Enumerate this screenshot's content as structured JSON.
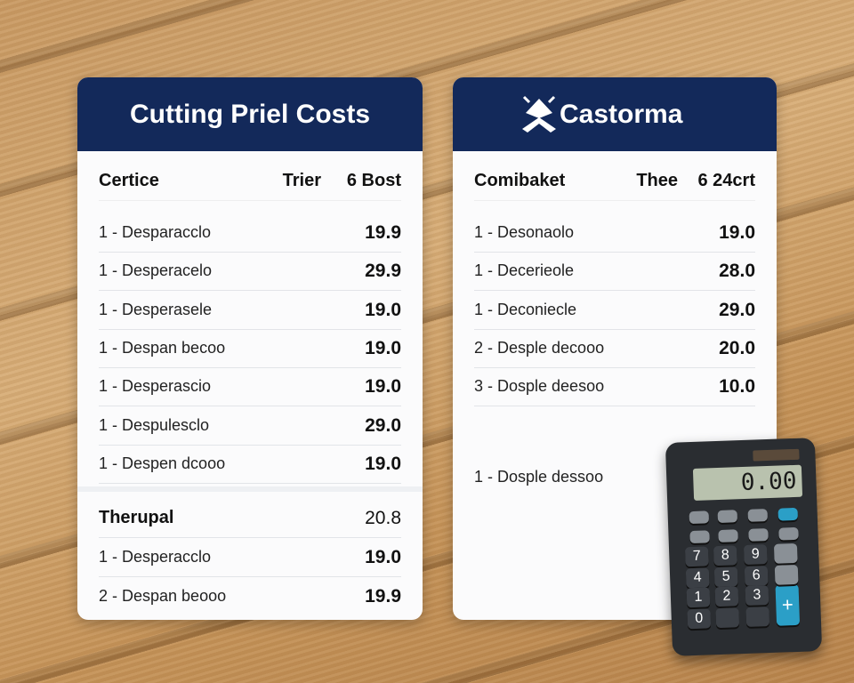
{
  "left_card": {
    "title": "Cutting Priel Costs",
    "columns": [
      "Certice",
      "Trier",
      "6 Bost"
    ],
    "rows": [
      [
        "1 - Desparacclo",
        "19.9"
      ],
      [
        "1 - Desperacelo",
        "29.9"
      ],
      [
        "1 - Desperasele",
        "19.0"
      ],
      [
        "1 - Despan becoo",
        "19.0"
      ],
      [
        "1 - Desperascio",
        "19.0"
      ],
      [
        "1 - Despulesclo",
        "29.0"
      ],
      [
        "1 - Despen dcooo",
        "19.0"
      ]
    ],
    "subtotal": [
      "Therupal",
      "20.8"
    ],
    "extra_rows": [
      [
        "1 - Desperacclo",
        "19.0"
      ],
      [
        "2 - Despan beooo",
        "19.9"
      ]
    ]
  },
  "right_card": {
    "brand": "Castorma",
    "columns": [
      "Comibaket",
      "Thee",
      "6 24crt"
    ],
    "rows": [
      [
        "1 - Desonaolo",
        "19.0"
      ],
      [
        "1 - Decerieole",
        "28.0"
      ],
      [
        "1 - Deconiecle",
        "29.0"
      ],
      [
        "2 - Desple decooo",
        "20.0"
      ],
      [
        "3 - Dosple deesoo",
        "10.0"
      ]
    ],
    "note": "1 - Dosple dessoo"
  },
  "calculator": {
    "display": "0.00",
    "keys": [
      "7",
      "8",
      "9",
      "4",
      "5",
      "6",
      "1",
      "2",
      "3",
      "0",
      "+"
    ]
  }
}
